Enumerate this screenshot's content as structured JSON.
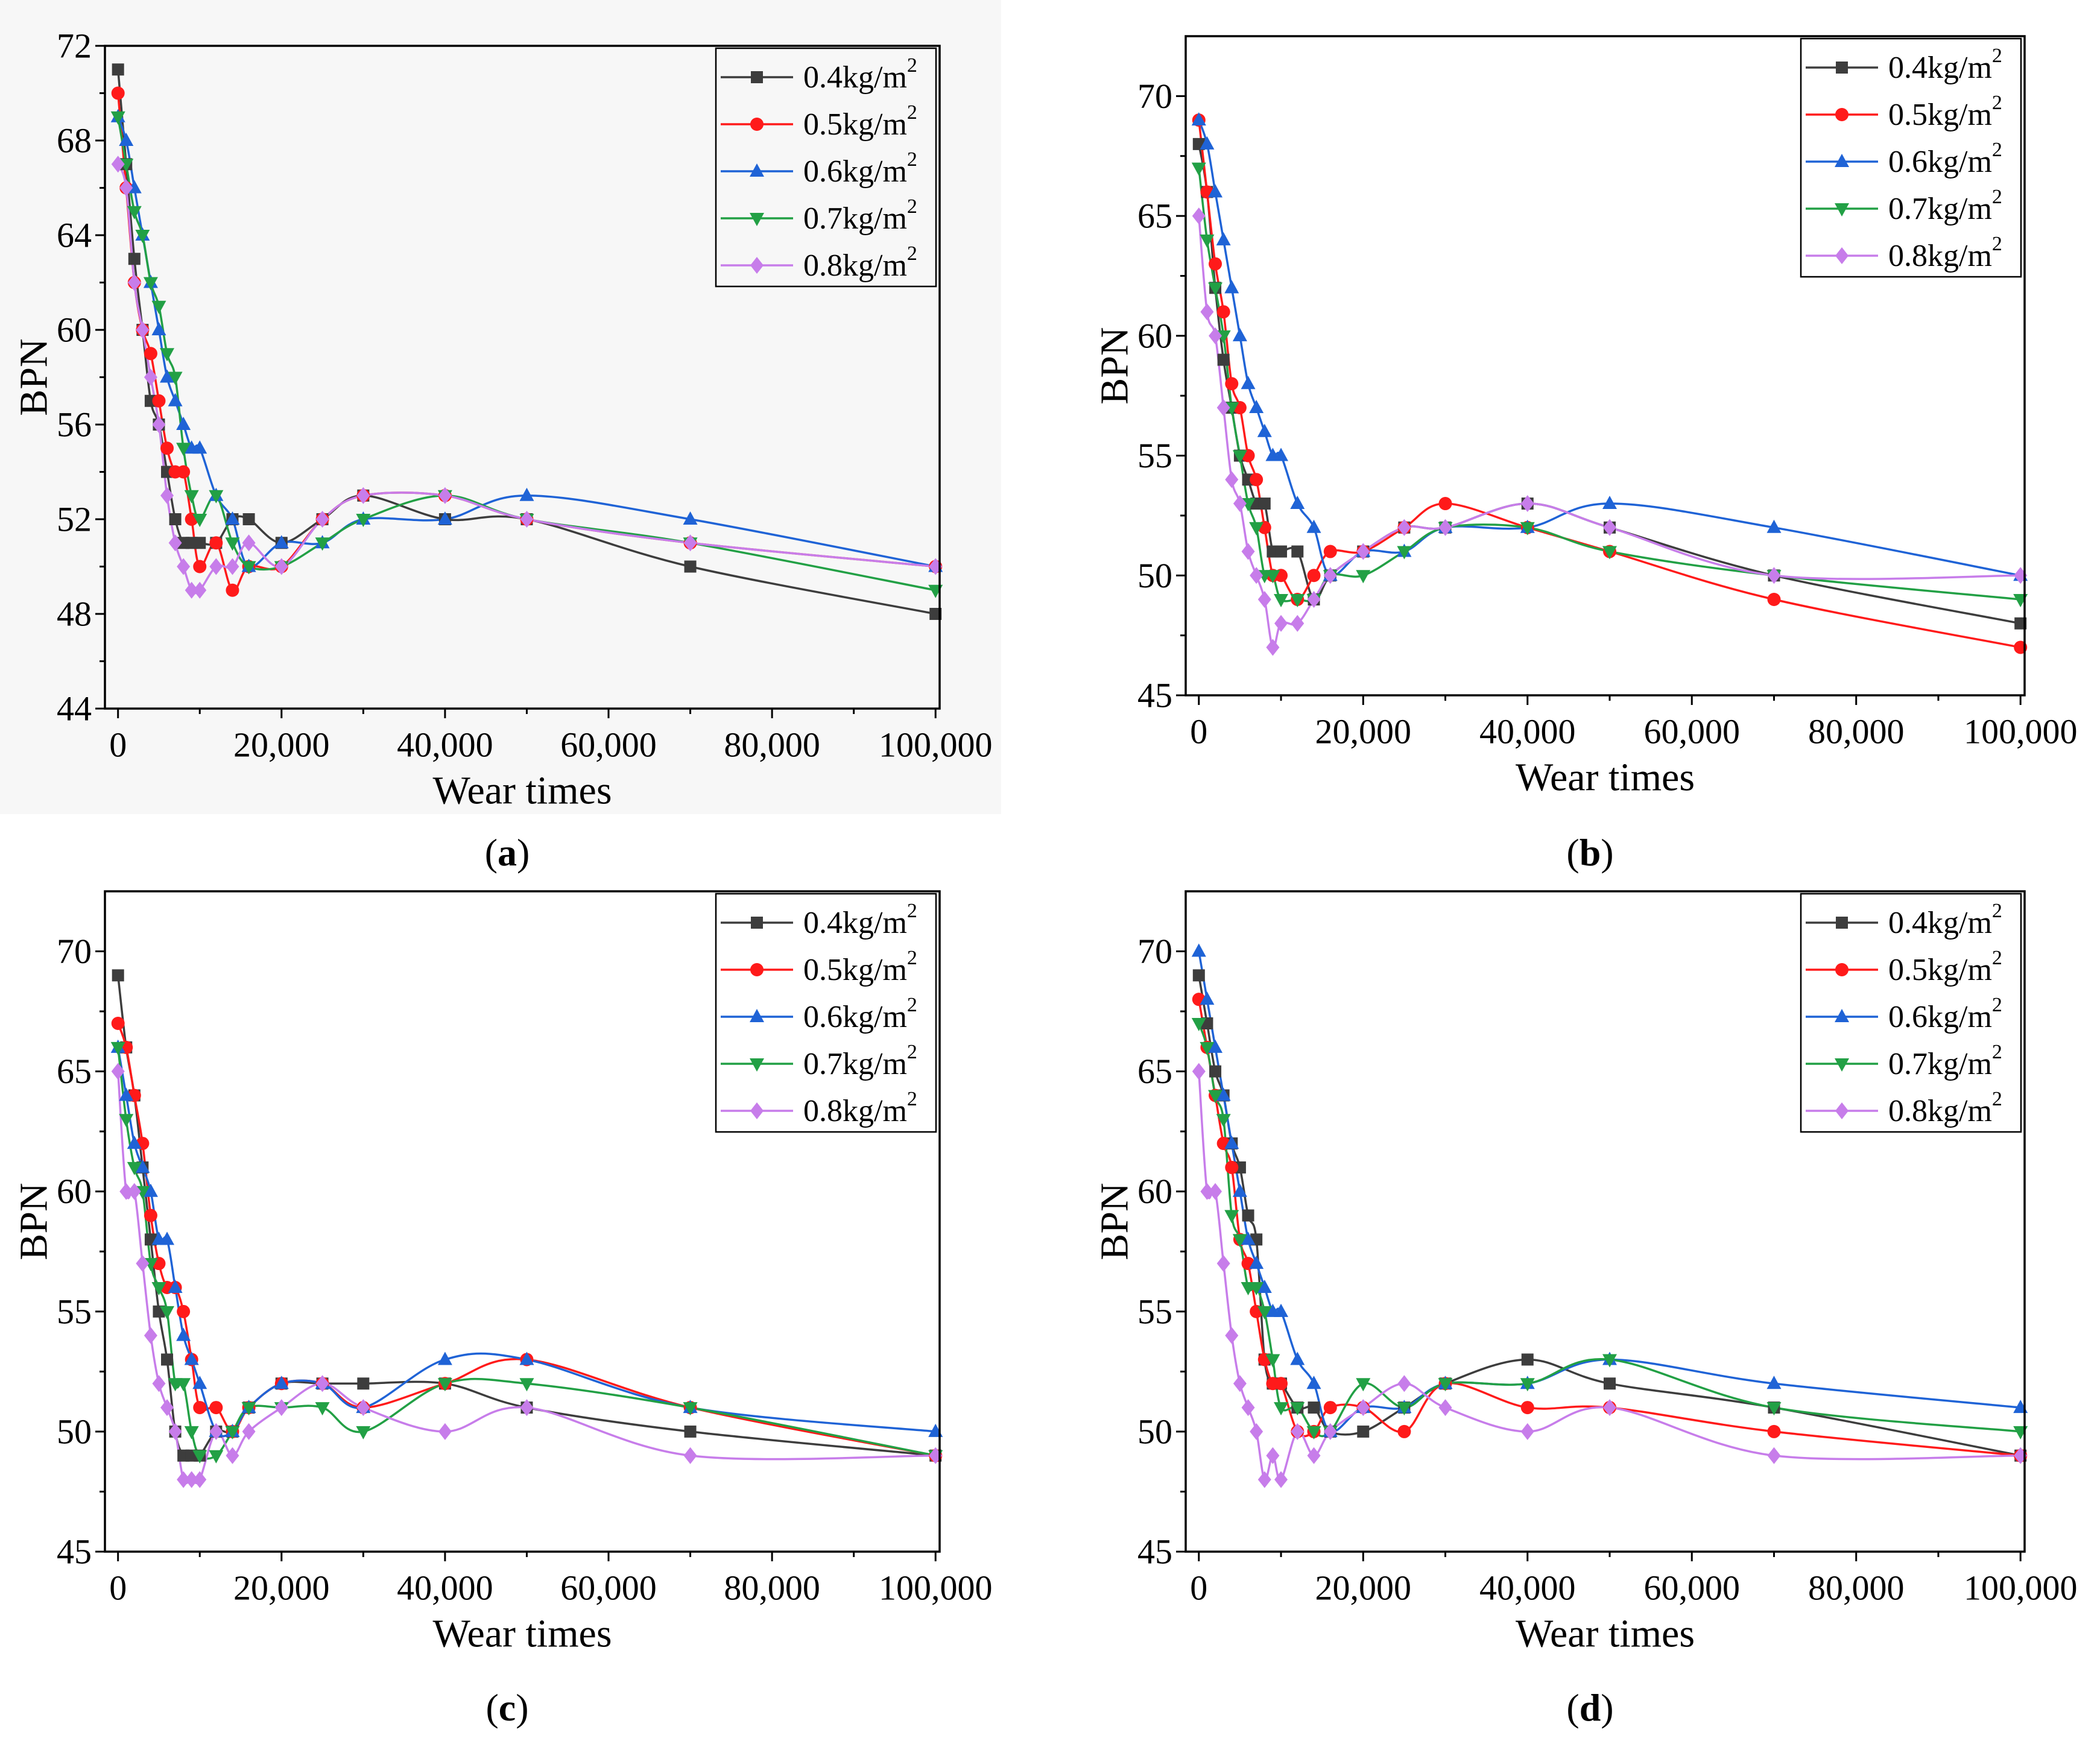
{
  "chart_data": [
    {
      "panel_label": "(a)",
      "type": "line",
      "xlabel": "Wear times",
      "ylabel": "BPN",
      "xlim": [
        -1600,
        100500
      ],
      "ylim": [
        44,
        72
      ],
      "xticks": [
        0,
        20000,
        40000,
        60000,
        80000,
        100000
      ],
      "xtick_labels": [
        "0",
        "20,000",
        "40,000",
        "60,000",
        "80,000",
        "100,000"
      ],
      "yticks": [
        44,
        48,
        52,
        56,
        60,
        64,
        68,
        72
      ],
      "ytick_labels": [
        "44",
        "48",
        "52",
        "56",
        "60",
        "64",
        "68",
        "72"
      ],
      "legend_position": "top-right",
      "x": [
        0,
        1000,
        2000,
        3000,
        4000,
        5000,
        6000,
        7000,
        8000,
        9000,
        10000,
        12000,
        14000,
        16000,
        20000,
        25000,
        30000,
        40000,
        50000,
        70000,
        100000
      ],
      "series": [
        {
          "label": "0.4kg/m",
          "label_sup": "2",
          "color": "#3d3d3d",
          "marker": "square",
          "values": [
            71,
            67,
            63,
            60,
            57,
            56,
            54,
            52,
            51,
            51,
            51,
            51,
            52,
            52,
            51,
            52,
            53,
            52,
            52,
            50,
            48
          ]
        },
        {
          "label": "0.5kg/m",
          "label_sup": "2",
          "color": "#ff1a1a",
          "marker": "circle",
          "values": [
            70,
            66,
            62,
            60,
            59,
            57,
            55,
            54,
            54,
            52,
            50,
            51,
            49,
            50,
            50,
            52,
            53,
            53,
            52,
            51,
            50
          ]
        },
        {
          "label": "0.6kg/m",
          "label_sup": "2",
          "color": "#1f63d6",
          "marker": "triangle-up",
          "values": [
            69,
            68,
            66,
            64,
            62,
            60,
            58,
            57,
            56,
            55,
            55,
            53,
            52,
            50,
            51,
            51,
            52,
            52,
            53,
            52,
            50
          ]
        },
        {
          "label": "0.7kg/m",
          "label_sup": "2",
          "color": "#22a045",
          "marker": "triangle-down",
          "values": [
            69,
            67,
            65,
            64,
            62,
            61,
            59,
            58,
            55,
            53,
            52,
            53,
            51,
            50,
            50,
            51,
            52,
            53,
            52,
            51,
            49
          ]
        },
        {
          "label": "0.8kg/m",
          "label_sup": "2",
          "color": "#c77dea",
          "marker": "diamond",
          "values": [
            67,
            66,
            62,
            60,
            58,
            56,
            53,
            51,
            50,
            49,
            49,
            50,
            50,
            51,
            50,
            52,
            53,
            53,
            52,
            51,
            50
          ]
        }
      ]
    },
    {
      "panel_label": "(b)",
      "type": "line",
      "xlabel": "Wear times",
      "ylabel": "BPN",
      "xlim": [
        -1600,
        100500
      ],
      "ylim": [
        45,
        72.5
      ],
      "xticks": [
        0,
        20000,
        40000,
        60000,
        80000,
        100000
      ],
      "xtick_labels": [
        "0",
        "20,000",
        "40,000",
        "60,000",
        "80,000",
        "100,000"
      ],
      "yticks": [
        45,
        50,
        55,
        60,
        65,
        70
      ],
      "ytick_labels": [
        "45",
        "50",
        "55",
        "60",
        "65",
        "70"
      ],
      "legend_position": "top-right",
      "x": [
        0,
        1000,
        2000,
        3000,
        4000,
        5000,
        6000,
        7000,
        8000,
        9000,
        10000,
        12000,
        14000,
        16000,
        20000,
        25000,
        30000,
        40000,
        50000,
        70000,
        100000
      ],
      "series": [
        {
          "label": "0.4kg/m",
          "label_sup": "2",
          "color": "#3d3d3d",
          "marker": "square",
          "values": [
            68,
            66,
            62,
            59,
            57,
            55,
            54,
            53,
            53,
            51,
            51,
            51,
            49,
            50,
            51,
            52,
            52,
            53,
            52,
            50,
            48
          ]
        },
        {
          "label": "0.5kg/m",
          "label_sup": "2",
          "color": "#ff1a1a",
          "marker": "circle",
          "values": [
            69,
            66,
            63,
            61,
            58,
            57,
            55,
            54,
            52,
            50,
            50,
            49,
            50,
            51,
            51,
            52,
            53,
            52,
            51,
            49,
            47
          ]
        },
        {
          "label": "0.6kg/m",
          "label_sup": "2",
          "color": "#1f63d6",
          "marker": "triangle-up",
          "values": [
            69,
            68,
            66,
            64,
            62,
            60,
            58,
            57,
            56,
            55,
            55,
            53,
            52,
            50,
            51,
            51,
            52,
            52,
            53,
            52,
            50
          ]
        },
        {
          "label": "0.7kg/m",
          "label_sup": "2",
          "color": "#22a045",
          "marker": "triangle-down",
          "values": [
            67,
            64,
            62,
            60,
            57,
            55,
            53,
            52,
            50,
            50,
            49,
            49,
            49,
            50,
            50,
            51,
            52,
            52,
            51,
            50,
            49
          ]
        },
        {
          "label": "0.8kg/m",
          "label_sup": "2",
          "color": "#c77dea",
          "marker": "diamond",
          "values": [
            65,
            61,
            60,
            57,
            54,
            53,
            51,
            50,
            49,
            47,
            48,
            48,
            49,
            50,
            51,
            52,
            52,
            53,
            52,
            50,
            50
          ]
        }
      ]
    },
    {
      "panel_label": "(c)",
      "type": "line",
      "xlabel": "Wear times",
      "ylabel": "BPN",
      "xlim": [
        -1600,
        100500
      ],
      "ylim": [
        45,
        72.5
      ],
      "xticks": [
        0,
        20000,
        40000,
        60000,
        80000,
        100000
      ],
      "xtick_labels": [
        "0",
        "20,000",
        "40,000",
        "60,000",
        "80,000",
        "100,000"
      ],
      "yticks": [
        45,
        50,
        55,
        60,
        65,
        70
      ],
      "ytick_labels": [
        "45",
        "50",
        "55",
        "60",
        "65",
        "70"
      ],
      "legend_position": "top-right",
      "x": [
        0,
        1000,
        2000,
        3000,
        4000,
        5000,
        6000,
        7000,
        8000,
        9000,
        10000,
        12000,
        14000,
        16000,
        20000,
        25000,
        30000,
        40000,
        50000,
        70000,
        100000
      ],
      "series": [
        {
          "label": "0.4kg/m",
          "label_sup": "2",
          "color": "#3d3d3d",
          "marker": "square",
          "values": [
            69,
            66,
            64,
            61,
            58,
            55,
            53,
            50,
            49,
            49,
            49,
            50,
            50,
            51,
            52,
            52,
            52,
            52,
            51,
            50,
            49
          ]
        },
        {
          "label": "0.5kg/m",
          "label_sup": "2",
          "color": "#ff1a1a",
          "marker": "circle",
          "values": [
            67,
            66,
            64,
            62,
            59,
            57,
            56,
            56,
            55,
            53,
            51,
            51,
            50,
            51,
            52,
            52,
            51,
            52,
            53,
            51,
            49
          ]
        },
        {
          "label": "0.6kg/m",
          "label_sup": "2",
          "color": "#1f63d6",
          "marker": "triangle-up",
          "values": [
            66,
            64,
            62,
            61,
            60,
            58,
            58,
            56,
            54,
            53,
            52,
            50,
            50,
            51,
            52,
            52,
            51,
            53,
            53,
            51,
            50
          ]
        },
        {
          "label": "0.7kg/m",
          "label_sup": "2",
          "color": "#22a045",
          "marker": "triangle-down",
          "values": [
            66,
            63,
            61,
            60,
            57,
            56,
            55,
            52,
            52,
            50,
            49,
            49,
            50,
            51,
            51,
            51,
            50,
            52,
            52,
            51,
            49
          ]
        },
        {
          "label": "0.8kg/m",
          "label_sup": "2",
          "color": "#c77dea",
          "marker": "diamond",
          "values": [
            65,
            60,
            60,
            57,
            54,
            52,
            51,
            50,
            48,
            48,
            48,
            50,
            49,
            50,
            51,
            52,
            51,
            50,
            51,
            49,
            49
          ]
        }
      ]
    },
    {
      "panel_label": "(d)",
      "type": "line",
      "xlabel": "Wear times",
      "ylabel": "BPN",
      "xlim": [
        -1600,
        100500
      ],
      "ylim": [
        45,
        72.5
      ],
      "xticks": [
        0,
        20000,
        40000,
        60000,
        80000,
        100000
      ],
      "xtick_labels": [
        "0",
        "20,000",
        "40,000",
        "60,000",
        "80,000",
        "100,000"
      ],
      "yticks": [
        45,
        50,
        55,
        60,
        65,
        70
      ],
      "ytick_labels": [
        "45",
        "50",
        "55",
        "60",
        "65",
        "70"
      ],
      "legend_position": "top-right",
      "x": [
        0,
        1000,
        2000,
        3000,
        4000,
        5000,
        6000,
        7000,
        8000,
        9000,
        10000,
        12000,
        14000,
        16000,
        20000,
        25000,
        30000,
        40000,
        50000,
        70000,
        100000
      ],
      "series": [
        {
          "label": "0.4kg/m",
          "label_sup": "2",
          "color": "#3d3d3d",
          "marker": "square",
          "values": [
            69,
            67,
            65,
            64,
            62,
            61,
            59,
            58,
            53,
            52,
            52,
            51,
            51,
            50,
            50,
            51,
            52,
            53,
            52,
            51,
            49
          ]
        },
        {
          "label": "0.5kg/m",
          "label_sup": "2",
          "color": "#ff1a1a",
          "marker": "circle",
          "values": [
            68,
            66,
            64,
            62,
            61,
            58,
            57,
            55,
            53,
            52,
            52,
            50,
            50,
            51,
            51,
            50,
            52,
            51,
            51,
            50,
            49
          ]
        },
        {
          "label": "0.6kg/m",
          "label_sup": "2",
          "color": "#1f63d6",
          "marker": "triangle-up",
          "values": [
            70,
            68,
            66,
            64,
            62,
            60,
            58,
            57,
            56,
            55,
            55,
            53,
            52,
            50,
            51,
            51,
            52,
            52,
            53,
            52,
            51
          ]
        },
        {
          "label": "0.7kg/m",
          "label_sup": "2",
          "color": "#22a045",
          "marker": "triangle-down",
          "values": [
            67,
            66,
            64,
            63,
            59,
            58,
            56,
            56,
            55,
            53,
            51,
            51,
            50,
            50,
            52,
            51,
            52,
            52,
            53,
            51,
            50
          ]
        },
        {
          "label": "0.8kg/m",
          "label_sup": "2",
          "color": "#c77dea",
          "marker": "diamond",
          "values": [
            65,
            60,
            60,
            57,
            54,
            52,
            51,
            50,
            48,
            49,
            48,
            50,
            49,
            50,
            51,
            52,
            51,
            50,
            51,
            49,
            49
          ]
        }
      ]
    }
  ]
}
